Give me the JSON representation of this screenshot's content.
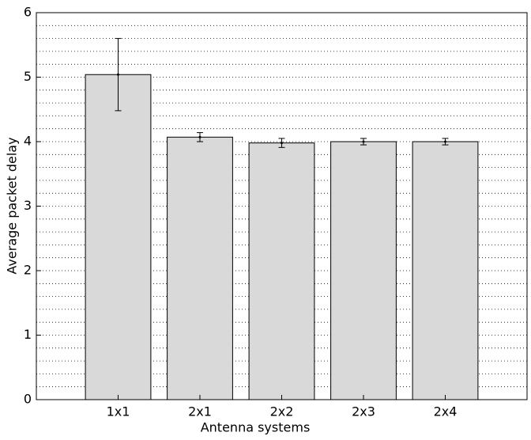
{
  "chart_data": {
    "type": "bar",
    "x_label": "Antenna systems",
    "y_label": "Average packet delay",
    "categories": [
      "1x1",
      "2x1",
      "2x2",
      "2x3",
      "2x4"
    ],
    "values": [
      5.04,
      4.07,
      3.98,
      4.0,
      4.0
    ],
    "errors": [
      0.56,
      0.07,
      0.07,
      0.05,
      0.05
    ],
    "color": "#d9d9d9",
    "ylim": [
      0,
      6
    ],
    "yticks": [
      0,
      1,
      2,
      3,
      4,
      5,
      6
    ],
    "grid": true,
    "y_minor_grid": [
      0.2,
      0.4,
      0.6,
      0.8,
      1.2,
      1.4,
      1.6,
      1.8,
      2.2,
      2.4,
      2.6,
      2.8,
      3.2,
      3.4,
      3.6,
      3.8,
      4.2,
      4.4,
      4.6,
      4.8,
      5.2,
      5.4,
      5.6,
      5.8
    ]
  }
}
